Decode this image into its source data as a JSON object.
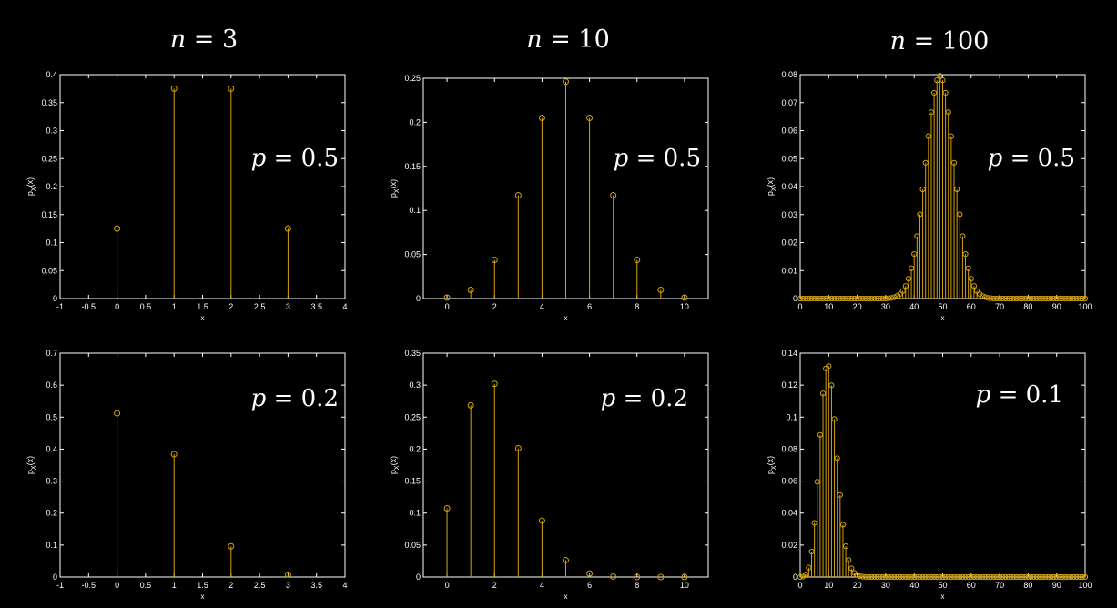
{
  "column_titles": [
    {
      "var": "n",
      "eq": "=",
      "value": "3"
    },
    {
      "var": "n",
      "eq": "=",
      "value": "10"
    },
    {
      "var": "n",
      "eq": "=",
      "value": "100"
    }
  ],
  "chart_data": [
    {
      "type": "stem",
      "n": 3,
      "annotation": {
        "var": "p",
        "eq": "=",
        "value": "0.5"
      },
      "xlabel": "x",
      "ylabel": "p_X(x)",
      "xlim": [
        -1,
        4
      ],
      "ylim": [
        0,
        0.4
      ],
      "xticks": [
        -1,
        -0.5,
        0,
        0.5,
        1,
        1.5,
        2,
        2.5,
        3,
        3.5,
        4
      ],
      "xtick_labels": [
        "-1",
        "-0.5",
        "0",
        "0.5",
        "1",
        "1.5",
        "2",
        "2.5",
        "3",
        "3.5",
        "4"
      ],
      "yticks": [
        0,
        0.05,
        0.1,
        0.15,
        0.2,
        0.25,
        0.3,
        0.35,
        0.4
      ],
      "ytick_labels": [
        "0",
        "0.05",
        "0.1",
        "0.15",
        "0.2",
        "0.25",
        "0.3",
        "0.35",
        "0.4"
      ],
      "x": [
        0,
        1,
        2,
        3
      ],
      "y": [
        0.125,
        0.375,
        0.375,
        0.125
      ],
      "color": "#d4a20a"
    },
    {
      "type": "stem",
      "n": 10,
      "annotation": {
        "var": "p",
        "eq": "=",
        "value": "0.5"
      },
      "xlabel": "x",
      "ylabel": "p_X(x)",
      "xlim": [
        -1,
        11
      ],
      "ylim": [
        0,
        0.25
      ],
      "xticks": [
        0,
        2,
        4,
        6,
        8,
        10
      ],
      "xtick_labels": [
        "0",
        "2",
        "4",
        "6",
        "8",
        "10"
      ],
      "yticks": [
        0,
        0.05,
        0.1,
        0.15,
        0.2,
        0.25
      ],
      "ytick_labels": [
        "0",
        "0.05",
        "0.1",
        "0.15",
        "0.2",
        "0.25"
      ],
      "x": [
        0,
        1,
        2,
        3,
        4,
        5,
        6,
        7,
        8,
        9,
        10
      ],
      "y": [
        0.001,
        0.0098,
        0.0439,
        0.1172,
        0.2051,
        0.2461,
        0.2051,
        0.1172,
        0.0439,
        0.0098,
        0.001
      ],
      "color": "#d4a20a"
    },
    {
      "type": "stem",
      "n": 100,
      "annotation": {
        "var": "p",
        "eq": "=",
        "value": "0.5"
      },
      "xlabel": "x",
      "ylabel": "p_X(x)",
      "xlim": [
        0,
        100
      ],
      "ylim": [
        0,
        0.08
      ],
      "xticks": [
        0,
        10,
        20,
        30,
        40,
        50,
        60,
        70,
        80,
        90,
        100
      ],
      "xtick_labels": [
        "0",
        "10",
        "20",
        "30",
        "40",
        "50",
        "60",
        "70",
        "80",
        "90",
        "100"
      ],
      "yticks": [
        0,
        0.01,
        0.02,
        0.03,
        0.04,
        0.05,
        0.06,
        0.07,
        0.08
      ],
      "ytick_labels": [
        "0",
        "0.01",
        "0.02",
        "0.03",
        "0.04",
        "0.05",
        "0.06",
        "0.07",
        "0.08"
      ],
      "x": [
        0,
        1,
        2,
        3,
        4,
        5,
        6,
        7,
        8,
        9,
        10,
        11,
        12,
        13,
        14,
        15,
        16,
        17,
        18,
        19,
        20,
        21,
        22,
        23,
        24,
        25,
        26,
        27,
        28,
        29,
        30,
        31,
        32,
        33,
        34,
        35,
        36,
        37,
        38,
        39,
        40,
        41,
        42,
        43,
        44,
        45,
        46,
        47,
        48,
        49,
        50,
        51,
        52,
        53,
        54,
        55,
        56,
        57,
        58,
        59,
        60,
        61,
        62,
        63,
        64,
        65,
        66,
        67,
        68,
        69,
        70,
        71,
        72,
        73,
        74,
        75,
        76,
        77,
        78,
        79,
        80,
        81,
        82,
        83,
        84,
        85,
        86,
        87,
        88,
        89,
        90,
        91,
        92,
        93,
        94,
        95,
        96,
        97,
        98,
        99,
        100
      ],
      "y": [
        0,
        0,
        0,
        0,
        0,
        0,
        0,
        0,
        0,
        0,
        0,
        0,
        0,
        0,
        0,
        0,
        0,
        0,
        0,
        0,
        0,
        0,
        0,
        0,
        0,
        0,
        0,
        0,
        0,
        0,
        0.0,
        0.0001,
        0.0002,
        0.0005,
        0.0009,
        0.0016,
        0.0027,
        0.0045,
        0.0071,
        0.0108,
        0.0159,
        0.0223,
        0.0301,
        0.039,
        0.0485,
        0.058,
        0.0666,
        0.0735,
        0.078,
        0.0796,
        0.078,
        0.0735,
        0.0666,
        0.058,
        0.0485,
        0.039,
        0.0301,
        0.0223,
        0.0159,
        0.0108,
        0.0071,
        0.0045,
        0.0027,
        0.0016,
        0.0009,
        0.0005,
        0.0002,
        0.0001,
        0.0,
        0,
        0,
        0,
        0,
        0,
        0,
        0,
        0,
        0,
        0,
        0,
        0,
        0,
        0,
        0,
        0,
        0,
        0,
        0,
        0,
        0,
        0,
        0,
        0,
        0,
        0,
        0,
        0,
        0,
        0,
        0,
        0
      ],
      "color": "#d4a20a"
    },
    {
      "type": "stem",
      "n": 3,
      "annotation": {
        "var": "p",
        "eq": "=",
        "value": "0.2"
      },
      "xlabel": "x",
      "ylabel": "p_X(x)",
      "xlim": [
        -1,
        4
      ],
      "ylim": [
        0,
        0.7
      ],
      "xticks": [
        -1,
        -0.5,
        0,
        0.5,
        1,
        1.5,
        2,
        2.5,
        3,
        3.5,
        4
      ],
      "xtick_labels": [
        "-1",
        "-0.5",
        "0",
        "0.5",
        "1",
        "1.5",
        "2",
        "2.5",
        "3",
        "3.5",
        "4"
      ],
      "yticks": [
        0,
        0.1,
        0.2,
        0.3,
        0.4,
        0.5,
        0.6,
        0.7
      ],
      "ytick_labels": [
        "0",
        "0.1",
        "0.2",
        "0.3",
        "0.4",
        "0.5",
        "0.6",
        "0.7"
      ],
      "x": [
        0,
        1,
        2,
        3
      ],
      "y": [
        0.512,
        0.384,
        0.096,
        0.008
      ],
      "color": "#d4a20a"
    },
    {
      "type": "stem",
      "n": 10,
      "annotation": {
        "var": "p",
        "eq": "=",
        "value": "0.2"
      },
      "xlabel": "x",
      "ylabel": "p_X(x)",
      "xlim": [
        -1,
        11
      ],
      "ylim": [
        0,
        0.35
      ],
      "xticks": [
        0,
        2,
        4,
        6,
        8,
        10
      ],
      "xtick_labels": [
        "0",
        "2",
        "4",
        "6",
        "8",
        "10"
      ],
      "yticks": [
        0,
        0.05,
        0.1,
        0.15,
        0.2,
        0.25,
        0.3,
        0.35
      ],
      "ytick_labels": [
        "0",
        "0.05",
        "0.1",
        "0.15",
        "0.2",
        "0.25",
        "0.3",
        "0.35"
      ],
      "x": [
        0,
        1,
        2,
        3,
        4,
        5,
        6,
        7,
        8,
        9,
        10
      ],
      "y": [
        0.1074,
        0.2684,
        0.302,
        0.2013,
        0.0881,
        0.0264,
        0.0055,
        0.0008,
        0.0001,
        0.0,
        0.0
      ],
      "color": "#d4a20a"
    },
    {
      "type": "stem",
      "n": 100,
      "annotation": {
        "var": "p",
        "eq": "=",
        "value": "0.1"
      },
      "xlabel": "x",
      "ylabel": "p_X(x)",
      "xlim": [
        0,
        100
      ],
      "ylim": [
        0,
        0.14
      ],
      "xticks": [
        0,
        10,
        20,
        30,
        40,
        50,
        60,
        70,
        80,
        90,
        100
      ],
      "xtick_labels": [
        "0",
        "10",
        "20",
        "30",
        "40",
        "50",
        "60",
        "70",
        "80",
        "90",
        "100"
      ],
      "yticks": [
        0,
        0.02,
        0.04,
        0.06,
        0.08,
        0.1,
        0.12,
        0.14
      ],
      "ytick_labels": [
        "0",
        "0.02",
        "0.04",
        "0.06",
        "0.08",
        "0.1",
        "0.12",
        "0.14"
      ],
      "x": [
        0,
        1,
        2,
        3,
        4,
        5,
        6,
        7,
        8,
        9,
        10,
        11,
        12,
        13,
        14,
        15,
        16,
        17,
        18,
        19,
        20,
        21,
        22,
        23,
        24,
        25,
        26,
        27,
        28,
        29,
        30,
        31,
        32,
        33,
        34,
        35,
        36,
        37,
        38,
        39,
        40,
        41,
        42,
        43,
        44,
        45,
        46,
        47,
        48,
        49,
        50,
        51,
        52,
        53,
        54,
        55,
        56,
        57,
        58,
        59,
        60,
        61,
        62,
        63,
        64,
        65,
        66,
        67,
        68,
        69,
        70,
        71,
        72,
        73,
        74,
        75,
        76,
        77,
        78,
        79,
        80,
        81,
        82,
        83,
        84,
        85,
        86,
        87,
        88,
        89,
        90,
        91,
        92,
        93,
        94,
        95,
        96,
        97,
        98,
        99,
        100
      ],
      "y": [
        0.0,
        0.0003,
        0.0016,
        0.0059,
        0.0159,
        0.0339,
        0.0596,
        0.0889,
        0.1148,
        0.1304,
        0.1319,
        0.1199,
        0.0988,
        0.0743,
        0.0513,
        0.0327,
        0.0193,
        0.0106,
        0.0054,
        0.0026,
        0.0012,
        0.0005,
        0.0002,
        0.0001,
        0,
        0,
        0,
        0,
        0,
        0,
        0,
        0,
        0,
        0,
        0,
        0,
        0,
        0,
        0,
        0,
        0,
        0,
        0,
        0,
        0,
        0,
        0,
        0,
        0,
        0,
        0,
        0,
        0,
        0,
        0,
        0,
        0,
        0,
        0,
        0,
        0,
        0,
        0,
        0,
        0,
        0,
        0,
        0,
        0,
        0,
        0,
        0,
        0,
        0,
        0,
        0,
        0,
        0,
        0,
        0,
        0,
        0,
        0,
        0,
        0,
        0,
        0,
        0,
        0,
        0,
        0,
        0,
        0,
        0,
        0,
        0,
        0,
        0,
        0,
        0,
        0
      ],
      "color": "#d4a20a"
    }
  ]
}
